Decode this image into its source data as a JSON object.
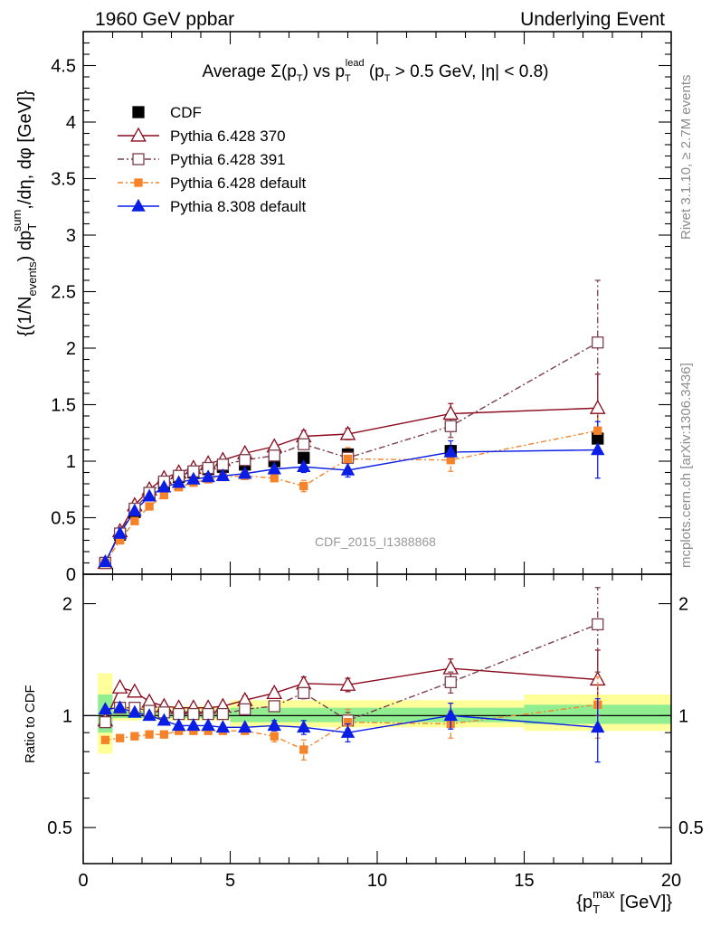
{
  "header": {
    "left": "1960 GeV ppbar",
    "right": "Underlying Event"
  },
  "side_labels": {
    "rivet": "Rivet 3.1.10, ≥ 2.7M events",
    "mcplots": "mcplots.cern.ch [arXiv:1306.3436]"
  },
  "watermark": "CDF_2015_I1388868",
  "chart_data": [
    {
      "type": "line",
      "title_parts": {
        "a": "Average ",
        "sigma": "Σ(p",
        "sub_T": "T",
        "b": ") vs p",
        "sup_lead": "lead",
        "c": " (p",
        "d": " > 0.5 GeV, |η| < 0.8)"
      },
      "ylabel_parts": {
        "a": "{(1/N",
        "sub_events": "events",
        "b": ") dp",
        "sup_sum": "sum",
        "sub_T": "T",
        "c": ",/dη, dφ [GeV]}"
      },
      "xlabel_parts": {
        "a": "{p",
        "sup_max": "max",
        "sub_T": "T",
        "b": " [GeV]}"
      },
      "xlim": [
        0,
        20
      ],
      "ylim": [
        0,
        4.8
      ],
      "x_ticks": [
        0,
        5,
        10,
        15,
        20
      ],
      "y_ticks": [
        "0",
        "0.5",
        "1",
        "1.5",
        "2",
        "2.5",
        "3",
        "3.5",
        "4",
        "4.5"
      ],
      "legend_position": "top-left",
      "x": [
        0.75,
        1.25,
        1.75,
        2.25,
        2.75,
        3.25,
        3.75,
        4.25,
        4.75,
        5.5,
        6.5,
        7.5,
        9.0,
        12.5,
        17.5
      ],
      "series": [
        {
          "name": "CDF",
          "marker": "filled-square",
          "color": "#000000",
          "values": [
            0.1,
            0.35,
            0.55,
            0.7,
            0.8,
            0.86,
            0.9,
            0.93,
            0.95,
            0.97,
            1.0,
            1.03,
            1.06,
            1.09,
            1.2
          ],
          "errors": [
            0.01,
            0.01,
            0.01,
            0.01,
            0.01,
            0.01,
            0.01,
            0.01,
            0.02,
            0.02,
            0.02,
            0.03,
            0.04,
            0.05,
            0.1
          ]
        },
        {
          "name": "Pythia 6.428 370",
          "marker": "open-triangle",
          "color": "#8b0a1e",
          "dash": "",
          "values": [
            0.1,
            0.38,
            0.61,
            0.75,
            0.85,
            0.9,
            0.94,
            0.98,
            1.01,
            1.07,
            1.13,
            1.22,
            1.24,
            1.42,
            1.47
          ],
          "errors": [
            0.01,
            0.01,
            0.01,
            0.01,
            0.01,
            0.01,
            0.01,
            0.01,
            0.02,
            0.02,
            0.03,
            0.05,
            0.05,
            0.09,
            0.3
          ]
        },
        {
          "name": "Pythia 6.428 391",
          "marker": "open-square",
          "color": "#7a3e4c",
          "dash": "7,3,2,3",
          "values": [
            0.1,
            0.36,
            0.58,
            0.72,
            0.82,
            0.87,
            0.91,
            0.94,
            0.97,
            1.01,
            1.05,
            1.15,
            1.03,
            1.31,
            2.05
          ],
          "errors": [
            0.01,
            0.01,
            0.01,
            0.01,
            0.01,
            0.01,
            0.01,
            0.01,
            0.02,
            0.02,
            0.03,
            0.04,
            0.05,
            0.1,
            0.55
          ]
        },
        {
          "name": "Pythia 6.428 default",
          "marker": "filled-square-small",
          "color": "#f5832a",
          "dash": "6,3,2,3",
          "values": [
            0.1,
            0.3,
            0.47,
            0.6,
            0.7,
            0.77,
            0.81,
            0.84,
            0.86,
            0.87,
            0.85,
            0.78,
            1.02,
            1.01,
            1.27
          ],
          "errors": [
            0.01,
            0.01,
            0.01,
            0.01,
            0.01,
            0.01,
            0.01,
            0.01,
            0.01,
            0.02,
            0.03,
            0.05,
            0.1,
            0.1,
            0.2
          ]
        },
        {
          "name": "Pythia 8.308 default",
          "marker": "filled-triangle",
          "color": "#0a1ee6",
          "dash": "",
          "values": [
            0.11,
            0.36,
            0.56,
            0.69,
            0.77,
            0.81,
            0.84,
            0.86,
            0.87,
            0.89,
            0.93,
            0.95,
            0.92,
            1.08,
            1.1
          ],
          "errors": [
            0.01,
            0.01,
            0.01,
            0.01,
            0.01,
            0.01,
            0.01,
            0.01,
            0.02,
            0.02,
            0.03,
            0.05,
            0.06,
            0.1,
            0.25
          ]
        }
      ]
    },
    {
      "type": "line",
      "ylabel": "Ratio to CDF",
      "xlim": [
        0,
        20
      ],
      "ylim": [
        0.4,
        2.4
      ],
      "y_scale": "log",
      "y_ticks": [
        "0.5",
        "1",
        "2"
      ],
      "band_inner_color": "#90ee90",
      "band_outer_color": "#ffff99",
      "bands": [
        {
          "x": [
            0.5,
            1.0
          ],
          "inner": [
            0.9,
            1.14
          ],
          "outer": [
            0.79,
            1.3
          ]
        },
        {
          "x": [
            1.0,
            5.0
          ],
          "inner": [
            0.985,
            1.03
          ],
          "outer": [
            0.97,
            1.06
          ]
        },
        {
          "x": [
            5.0,
            15.0
          ],
          "inner": [
            0.96,
            1.05
          ],
          "outer": [
            0.93,
            1.1
          ]
        },
        {
          "x": [
            15.0,
            20.0
          ],
          "inner": [
            0.95,
            1.07
          ],
          "outer": [
            0.91,
            1.14
          ]
        }
      ],
      "series": [
        {
          "name": "Pythia 6.428 370",
          "values": [
            0.97,
            1.19,
            1.16,
            1.09,
            1.06,
            1.05,
            1.05,
            1.05,
            1.06,
            1.1,
            1.15,
            1.22,
            1.21,
            1.34,
            1.25
          ],
          "errors": [
            0.02,
            0.02,
            0.02,
            0.02,
            0.02,
            0.02,
            0.02,
            0.02,
            0.02,
            0.03,
            0.03,
            0.05,
            0.05,
            0.08,
            0.25
          ]
        },
        {
          "name": "Pythia 6.428 391",
          "values": [
            0.96,
            1.05,
            1.05,
            1.03,
            1.02,
            1.01,
            1.01,
            1.01,
            1.01,
            1.04,
            1.06,
            1.15,
            0.97,
            1.23,
            1.76
          ],
          "errors": [
            0.02,
            0.02,
            0.02,
            0.02,
            0.02,
            0.02,
            0.02,
            0.02,
            0.02,
            0.03,
            0.03,
            0.04,
            0.05,
            0.08,
            0.45
          ]
        },
        {
          "name": "Pythia 6.428 default",
          "values": [
            0.86,
            0.87,
            0.88,
            0.89,
            0.89,
            0.91,
            0.91,
            0.91,
            0.91,
            0.91,
            0.88,
            0.81,
            0.96,
            0.95,
            1.07
          ],
          "errors": [
            0.02,
            0.02,
            0.02,
            0.02,
            0.02,
            0.02,
            0.02,
            0.02,
            0.02,
            0.02,
            0.03,
            0.05,
            0.08,
            0.08,
            0.2
          ]
        },
        {
          "name": "Pythia 8.308 default",
          "values": [
            1.04,
            1.05,
            1.02,
            1.0,
            0.97,
            0.94,
            0.94,
            0.94,
            0.93,
            0.93,
            0.94,
            0.93,
            0.9,
            1.0,
            0.93
          ],
          "errors": [
            0.02,
            0.02,
            0.02,
            0.02,
            0.02,
            0.02,
            0.02,
            0.02,
            0.02,
            0.02,
            0.03,
            0.04,
            0.05,
            0.08,
            0.18
          ]
        }
      ]
    }
  ]
}
